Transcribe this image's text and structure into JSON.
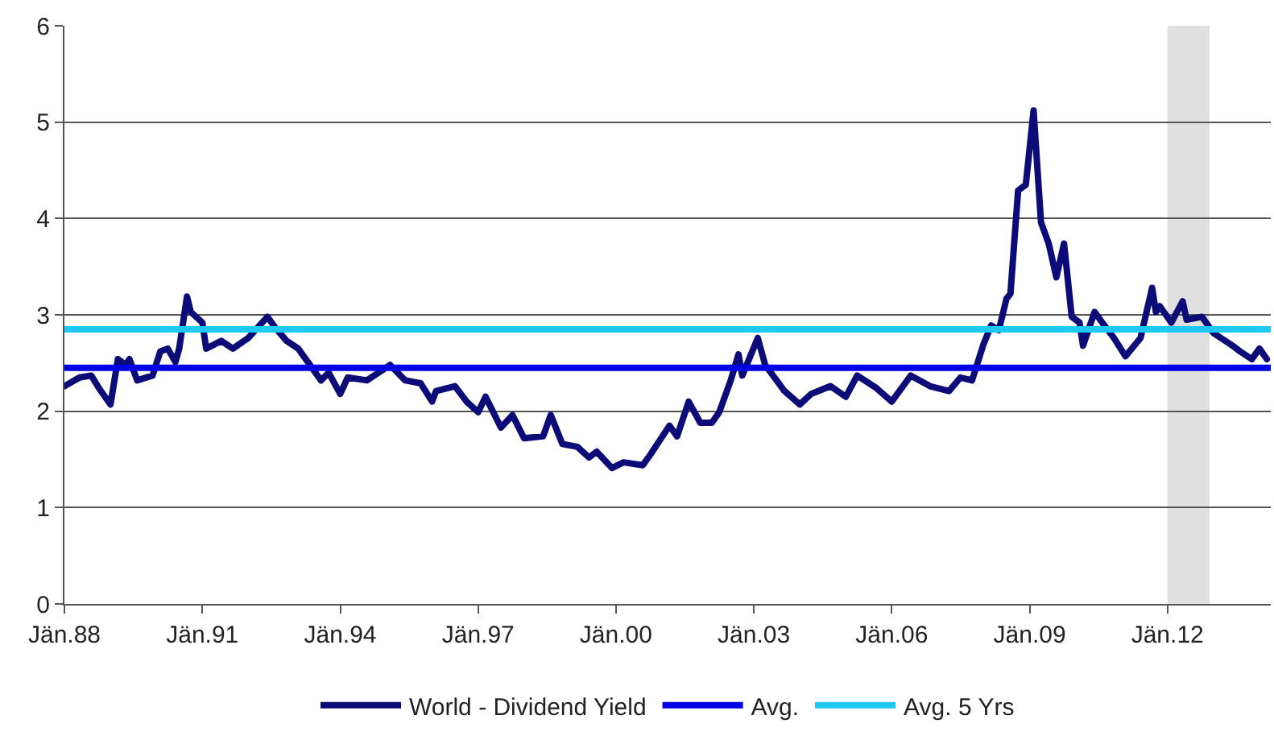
{
  "chart_data": {
    "type": "line",
    "xlim": [
      "1988-01",
      "2014-04"
    ],
    "xticks": [
      {
        "value": "1988-01",
        "label": "Jän.88"
      },
      {
        "value": "1991-01",
        "label": "Jän.91"
      },
      {
        "value": "1994-01",
        "label": "Jän.94"
      },
      {
        "value": "1997-01",
        "label": "Jän.97"
      },
      {
        "value": "2000-01",
        "label": "Jän.00"
      },
      {
        "value": "2003-01",
        "label": "Jän.03"
      },
      {
        "value": "2006-01",
        "label": "Jän.06"
      },
      {
        "value": "2009-01",
        "label": "Jän.09"
      },
      {
        "value": "2012-01",
        "label": "Jän.12"
      }
    ],
    "ylim": [
      0,
      6
    ],
    "yticks": [
      0,
      1,
      2,
      3,
      4,
      5,
      6
    ],
    "grid": "y",
    "legend": "bottom",
    "marker": "none",
    "line_style": "solid",
    "bands": [
      {
        "axis": "x",
        "from": "2012-01",
        "to": "2012-12",
        "color": "#e0e0e0"
      }
    ],
    "series": [
      {
        "name": "World - Dividend Yield",
        "color": "#0c0c78",
        "x": [
          "1988-01",
          "1988-05",
          "1988-08",
          "1988-10",
          "1989-01",
          "1989-03",
          "1989-05",
          "1989-06",
          "1989-08",
          "1989-12",
          "1990-02",
          "1990-04",
          "1990-06",
          "1990-07",
          "1990-09",
          "1990-10",
          "1991-01",
          "1991-02",
          "1991-06",
          "1991-09",
          "1992-01",
          "1992-06",
          "1992-08",
          "1992-11",
          "1993-02",
          "1993-08",
          "1993-10",
          "1994-01",
          "1994-03",
          "1994-08",
          "1995-02",
          "1995-06",
          "1995-10",
          "1996-01",
          "1996-02",
          "1996-07",
          "1996-10",
          "1997-01",
          "1997-03",
          "1997-07",
          "1997-10",
          "1998-01",
          "1998-06",
          "1998-08",
          "1998-11",
          "1999-03",
          "1999-06",
          "1999-08",
          "1999-12",
          "2000-03",
          "2000-08",
          "2000-10",
          "2001-03",
          "2001-05",
          "2001-08",
          "2001-11",
          "2002-02",
          "2002-04",
          "2002-07",
          "2002-09",
          "2002-10",
          "2003-02",
          "2003-04",
          "2003-09",
          "2004-01",
          "2004-04",
          "2004-09",
          "2005-01",
          "2005-04",
          "2005-09",
          "2006-01",
          "2006-06",
          "2006-11",
          "2007-04",
          "2007-07",
          "2007-10",
          "2008-01",
          "2008-03",
          "2008-05",
          "2008-07",
          "2008-08",
          "2008-10",
          "2008-12",
          "2009-02",
          "2009-04",
          "2009-06",
          "2009-08",
          "2009-10",
          "2009-12",
          "2010-02",
          "2010-03",
          "2010-06",
          "2010-08",
          "2010-11",
          "2011-02",
          "2011-06",
          "2011-09",
          "2011-10",
          "2011-11",
          "2012-02",
          "2012-05",
          "2012-06",
          "2012-10",
          "2013-01",
          "2013-06",
          "2013-08",
          "2013-11",
          "2014-01",
          "2014-03"
        ],
        "values": [
          2.26,
          2.35,
          2.37,
          2.24,
          2.07,
          2.54,
          2.48,
          2.54,
          2.32,
          2.37,
          2.62,
          2.65,
          2.51,
          2.65,
          3.19,
          3.03,
          2.92,
          2.65,
          2.73,
          2.65,
          2.76,
          2.98,
          2.87,
          2.73,
          2.65,
          2.32,
          2.4,
          2.18,
          2.35,
          2.32,
          2.48,
          2.32,
          2.29,
          2.1,
          2.21,
          2.26,
          2.1,
          1.99,
          2.15,
          1.83,
          1.96,
          1.72,
          1.74,
          1.96,
          1.66,
          1.63,
          1.52,
          1.58,
          1.41,
          1.47,
          1.44,
          1.55,
          1.85,
          1.74,
          2.1,
          1.88,
          1.88,
          1.99,
          2.32,
          2.59,
          2.37,
          2.76,
          2.48,
          2.21,
          2.07,
          2.18,
          2.26,
          2.15,
          2.37,
          2.24,
          2.1,
          2.37,
          2.26,
          2.21,
          2.35,
          2.32,
          2.7,
          2.89,
          2.84,
          3.17,
          3.22,
          4.29,
          4.35,
          5.12,
          3.96,
          3.74,
          3.39,
          3.74,
          2.98,
          2.92,
          2.68,
          3.03,
          2.92,
          2.76,
          2.57,
          2.76,
          3.28,
          3.03,
          3.09,
          2.92,
          3.14,
          2.95,
          2.98,
          2.81,
          2.68,
          2.62,
          2.54,
          2.65,
          2.54
        ]
      },
      {
        "name": "Avg.",
        "color": "#0000e6",
        "x": [
          "1988-01",
          "2014-04"
        ],
        "values": [
          2.45,
          2.45
        ]
      },
      {
        "name": "Avg. 5 Yrs",
        "color": "#1ec8f0",
        "x": [
          "1988-01",
          "2014-04"
        ],
        "values": [
          2.85,
          2.85
        ]
      }
    ]
  }
}
